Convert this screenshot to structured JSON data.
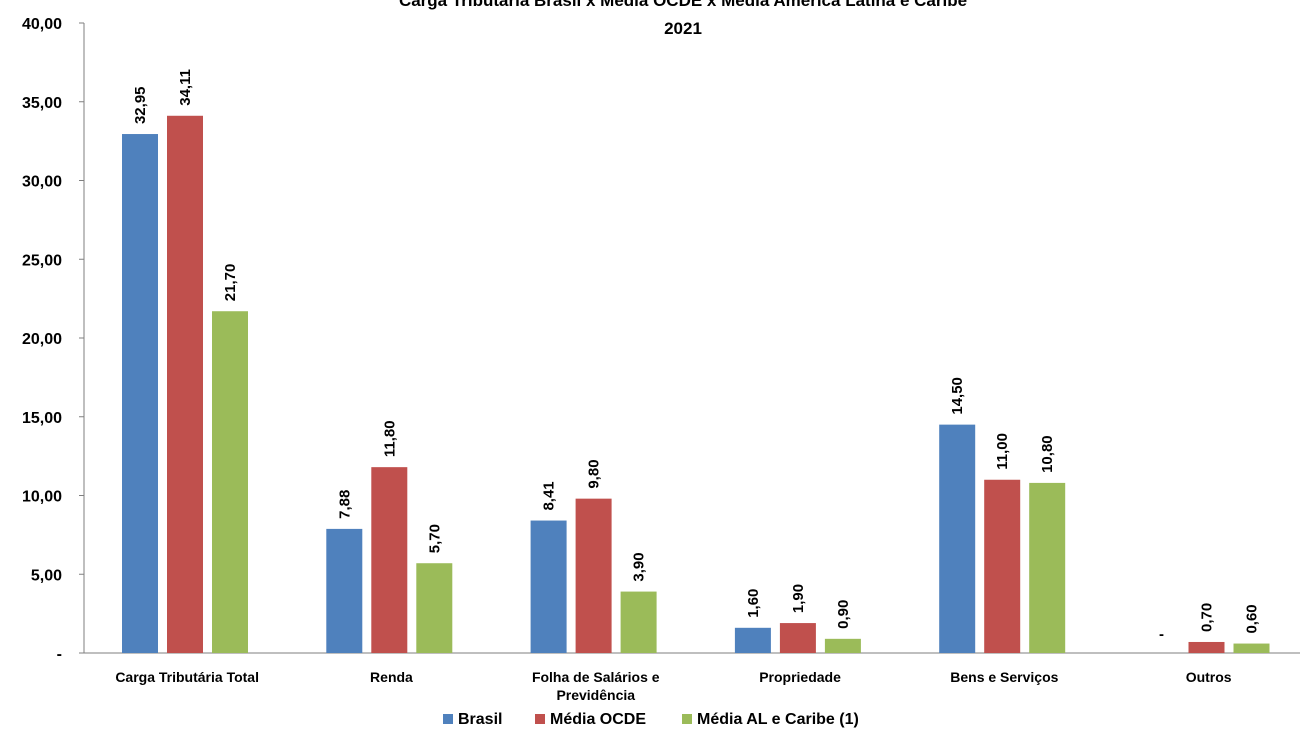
{
  "chart_data": {
    "type": "bar",
    "title": "Carga Tributária Brasil x Média OCDE x Média América Latina e Caribe",
    "subtitle": "2021",
    "categories": [
      [
        "Carga Tributária Total"
      ],
      [
        "Renda"
      ],
      [
        "Folha de Salários e",
        "Previdência"
      ],
      [
        "Propriedade"
      ],
      [
        "Bens e Serviços"
      ],
      [
        "Outros"
      ]
    ],
    "series": [
      {
        "name": "Brasil",
        "color": "#4F81BD",
        "values": [
          32.95,
          7.88,
          8.41,
          1.6,
          14.5,
          0
        ],
        "labels": [
          "32,95",
          "7,88",
          "8,41",
          "1,60",
          "14,50",
          "-"
        ]
      },
      {
        "name": "Média OCDE",
        "color": "#C0504D",
        "values": [
          34.11,
          11.8,
          9.8,
          1.9,
          11.0,
          0.7
        ],
        "labels": [
          "34,11",
          "11,80",
          "9,80",
          "1,90",
          "11,00",
          "0,70"
        ]
      },
      {
        "name": "Média AL e Caribe (1)",
        "color": "#9BBB59",
        "values": [
          21.7,
          5.7,
          3.9,
          0.9,
          10.8,
          0.6
        ],
        "labels": [
          "21,70",
          "5,70",
          "3,90",
          "0,90",
          "10,80",
          "0,60"
        ]
      }
    ],
    "yticks": [
      0,
      5,
      10,
      15,
      20,
      25,
      30,
      35,
      40
    ],
    "ytick_labels": [
      "-",
      "5,00",
      "10,00",
      "15,00",
      "20,00",
      "25,00",
      "30,00",
      "35,00",
      "40,00"
    ],
    "ylim": [
      0,
      40
    ],
    "grid": false,
    "legend_position": "bottom"
  }
}
